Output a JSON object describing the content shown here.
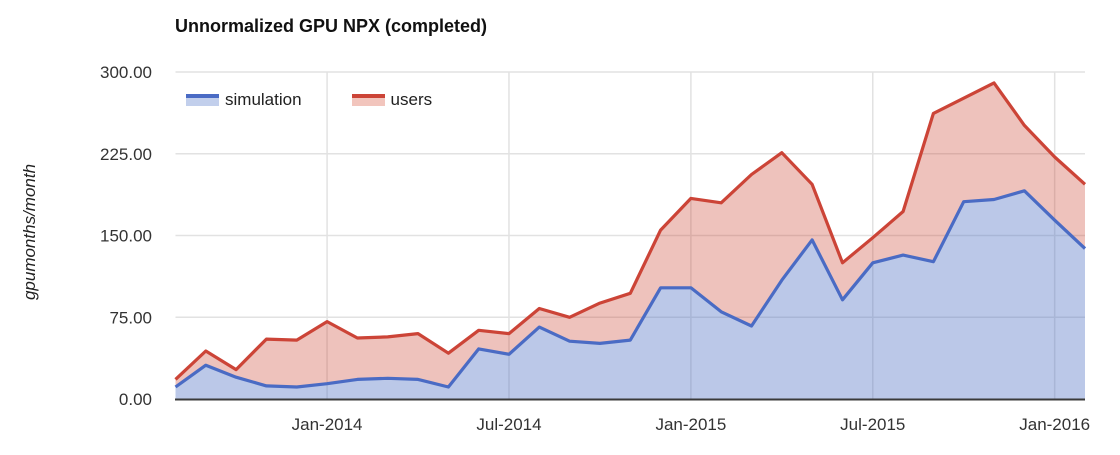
{
  "chart": {
    "title": "Unnormalized GPU NPX (completed)",
    "y_axis": {
      "title": "gpumonths/month",
      "tick_labels": [
        "0.00",
        "75.00",
        "150.00",
        "225.00",
        "300.00"
      ]
    },
    "x_axis": {
      "tick_labels": [
        "Jan-2014",
        "Jul-2014",
        "Jan-2015",
        "Jul-2015",
        "Jan-2016"
      ]
    },
    "legend": {
      "simulation_label": "simulation",
      "users_label": "users"
    },
    "colors": {
      "simulation_line": "#4a6bc4",
      "simulation_fill": "#c2cfec",
      "users_line": "#cc4437",
      "users_fill": "#f2c5bd",
      "gridline": "#e2e2e2",
      "axis_baseline": "#3a3a3a",
      "tick_text": "#333333"
    }
  },
  "chart_data": {
    "type": "area",
    "title": "Unnormalized GPU NPX (completed)",
    "xlabel": "",
    "ylabel": "gpumonths/month",
    "ylim": [
      0,
      300
    ],
    "y_ticks": [
      0,
      75,
      150,
      225,
      300
    ],
    "x_tick_labels": [
      "Jan-2014",
      "Jul-2014",
      "Jan-2015",
      "Jul-2015",
      "Jan-2016"
    ],
    "x_tick_indices": [
      5,
      11,
      17,
      23,
      29
    ],
    "grid": true,
    "legend_position": "top-left-inside",
    "stacked_appearance": true,
    "categories": [
      "Aug-2013",
      "Sep-2013",
      "Oct-2013",
      "Nov-2013",
      "Dec-2013",
      "Jan-2014",
      "Feb-2014",
      "Mar-2014",
      "Apr-2014",
      "May-2014",
      "Jun-2014",
      "Jul-2014",
      "Aug-2014",
      "Sep-2014",
      "Oct-2014",
      "Nov-2014",
      "Dec-2014",
      "Jan-2015",
      "Feb-2015",
      "Mar-2015",
      "Apr-2015",
      "May-2015",
      "Jun-2015",
      "Jul-2015",
      "Aug-2015",
      "Sep-2015",
      "Oct-2015",
      "Nov-2015",
      "Dec-2015",
      "Jan-2016",
      "Feb-2016"
    ],
    "series": [
      {
        "name": "simulation",
        "color": "#4a6bc4",
        "values": [
          11,
          31,
          20,
          12,
          11,
          14,
          18,
          19,
          18,
          11,
          46,
          41,
          66,
          53,
          51,
          54,
          102,
          102,
          80,
          67,
          109,
          146,
          91,
          125,
          132,
          126,
          181,
          183,
          191,
          164,
          138
        ]
      },
      {
        "name": "users",
        "color": "#cc4437",
        "values": [
          18,
          44,
          27,
          55,
          54,
          71,
          56,
          57,
          60,
          42,
          63,
          60,
          83,
          75,
          88,
          97,
          155,
          184,
          180,
          206,
          226,
          197,
          125,
          148,
          172,
          262,
          276,
          290,
          251,
          222,
          197
        ]
      }
    ]
  }
}
